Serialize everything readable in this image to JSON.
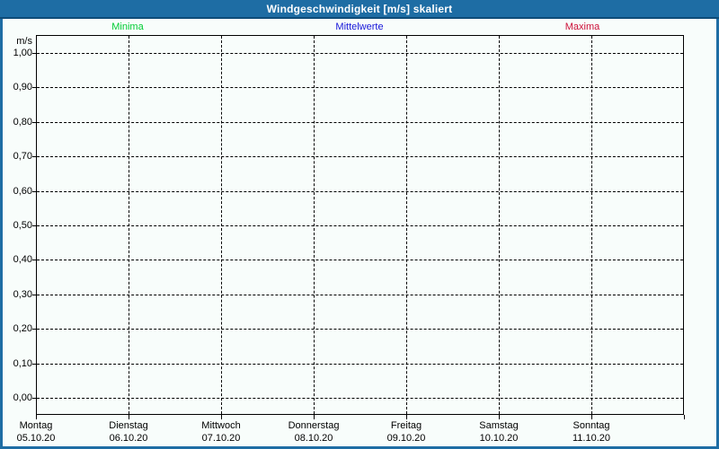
{
  "window": {
    "title": "Windgeschwindigkeit [m/s] skaliert"
  },
  "colors": {
    "title_bar": "#1E6DA4",
    "title_bar_edge": "#0F4C78",
    "window_border": "#1E6DA4",
    "content_background": "#F8FDFB",
    "grid": "#000000",
    "minima": "#00CC33",
    "mittelwerte": "#1717D9",
    "maxima": "#CC1038"
  },
  "legend": {
    "items": [
      {
        "label": "Minima",
        "color": "#00CC33"
      },
      {
        "label": "Mittelwerte",
        "color": "#1717D9"
      },
      {
        "label": "Maxima",
        "color": "#CC1038"
      }
    ]
  },
  "y_axis": {
    "unit": "m/s",
    "ticks": [
      "1,00",
      "0,90",
      "0,80",
      "0,70",
      "0,60",
      "0,50",
      "0,40",
      "0,30",
      "0,20",
      "0,10",
      "0,00"
    ]
  },
  "x_axis": {
    "days": [
      {
        "name": "Montag",
        "date": "05.10.20"
      },
      {
        "name": "Dienstag",
        "date": "06.10.20"
      },
      {
        "name": "Mittwoch",
        "date": "07.10.20"
      },
      {
        "name": "Donnerstag",
        "date": "08.10.20"
      },
      {
        "name": "Freitag",
        "date": "09.10.20"
      },
      {
        "name": "Samstag",
        "date": "10.10.20"
      },
      {
        "name": "Sonntag",
        "date": "11.10.20"
      }
    ]
  },
  "chart_data": {
    "type": "line",
    "title": "Windgeschwindigkeit [m/s] skaliert",
    "ylabel": "m/s",
    "ylim": [
      0.0,
      1.0
    ],
    "y_tick_interval": 0.1,
    "y_tick_labels": [
      "1,00",
      "0,90",
      "0,80",
      "0,70",
      "0,60",
      "0,50",
      "0,40",
      "0,30",
      "0,20",
      "0,10",
      "0,00"
    ],
    "categories": [
      "Montag 05.10.20",
      "Dienstag 06.10.20",
      "Mittwoch 07.10.20",
      "Donnerstag 08.10.20",
      "Freitag 09.10.20",
      "Samstag 10.10.20",
      "Sonntag 11.10.20"
    ],
    "series": [
      {
        "name": "Minima",
        "color": "#00CC33",
        "values": []
      },
      {
        "name": "Mittelwerte",
        "color": "#1717D9",
        "values": []
      },
      {
        "name": "Maxima",
        "color": "#CC1038",
        "values": []
      }
    ],
    "grid": "dashed",
    "legend_position": "top"
  }
}
